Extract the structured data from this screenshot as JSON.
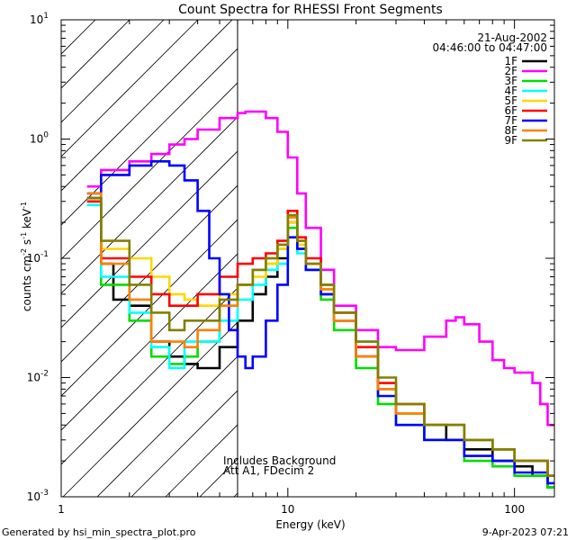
{
  "chart_data": {
    "type": "line",
    "title": "Count Spectra for RHESSI Front Segments",
    "xlabel": "Energy (keV)",
    "ylabel_parts": {
      "counts": "counts cm",
      "exp_minus2": "-2",
      "s": " s",
      "exp_minus1a": "-1",
      "kev": " keV",
      "exp_minus1b": "-1"
    },
    "x_scale": "log",
    "y_scale": "log",
    "xlim": [
      1.0,
      150.0
    ],
    "ylim": [
      0.001,
      10
    ],
    "x_ticks": [
      {
        "value": 1,
        "label": "1"
      },
      {
        "value": 10,
        "label": "10"
      },
      {
        "value": 100,
        "label": "100"
      }
    ],
    "y_ticks": [
      {
        "value": 0.001,
        "base": "10",
        "exp": "-3"
      },
      {
        "value": 0.01,
        "base": "10",
        "exp": "-2"
      },
      {
        "value": 0.1,
        "base": "10",
        "exp": "-1"
      },
      {
        "value": 1,
        "base": "10",
        "exp": "0"
      },
      {
        "value": 10,
        "base": "10",
        "exp": "1"
      }
    ],
    "date": "21-Aug-2002",
    "time_range": "04:46:00 to 04:47:00",
    "hatched_below_kev": 6.0,
    "annotations": [
      "Includes Background",
      "Att A1, FDecim 2"
    ],
    "series": [
      {
        "name": "1F",
        "color": "#000000",
        "points": [
          [
            1.3,
            0.32
          ],
          [
            1.5,
            0.09
          ],
          [
            1.7,
            0.045
          ],
          [
            2.0,
            0.04
          ],
          [
            2.5,
            0.02
          ],
          [
            3.0,
            0.015
          ],
          [
            3.5,
            0.013
          ],
          [
            4.0,
            0.012
          ],
          [
            5.0,
            0.018
          ],
          [
            6.0,
            0.03
          ],
          [
            7.0,
            0.05
          ],
          [
            8.0,
            0.07
          ],
          [
            9.0,
            0.1
          ],
          [
            10.0,
            0.2
          ],
          [
            11.0,
            0.12
          ],
          [
            12.0,
            0.08
          ],
          [
            14.0,
            0.05
          ],
          [
            16.0,
            0.03
          ],
          [
            20.0,
            0.015
          ],
          [
            25.0,
            0.008
          ],
          [
            30.0,
            0.005
          ],
          [
            40.0,
            0.004
          ],
          [
            50.0,
            0.003
          ],
          [
            60.0,
            0.0025
          ],
          [
            80.0,
            0.002
          ],
          [
            100.0,
            0.0018
          ],
          [
            120.0,
            0.0015
          ],
          [
            140.0,
            0.0012
          ]
        ]
      },
      {
        "name": "2F",
        "color": "#ff00ff",
        "points": [
          [
            1.3,
            0.4
          ],
          [
            1.5,
            0.55
          ],
          [
            2.0,
            0.65
          ],
          [
            2.5,
            0.75
          ],
          [
            3.0,
            0.9
          ],
          [
            3.5,
            1.0
          ],
          [
            4.0,
            1.2
          ],
          [
            5.0,
            1.5
          ],
          [
            6.0,
            1.65
          ],
          [
            6.5,
            1.7
          ],
          [
            7.0,
            1.7
          ],
          [
            8.0,
            1.5
          ],
          [
            9.0,
            1.15
          ],
          [
            10.0,
            0.7
          ],
          [
            11.0,
            0.35
          ],
          [
            12.0,
            0.18
          ],
          [
            14.0,
            0.08
          ],
          [
            16.0,
            0.04
          ],
          [
            20.0,
            0.025
          ],
          [
            25.0,
            0.018
          ],
          [
            30.0,
            0.017
          ],
          [
            40.0,
            0.022
          ],
          [
            50.0,
            0.03
          ],
          [
            55.0,
            0.032
          ],
          [
            60.0,
            0.028
          ],
          [
            70.0,
            0.02
          ],
          [
            80.0,
            0.014
          ],
          [
            90.0,
            0.012
          ],
          [
            100.0,
            0.011
          ],
          [
            120.0,
            0.009
          ],
          [
            130.0,
            0.006
          ],
          [
            140.0,
            0.004
          ]
        ]
      },
      {
        "name": "3F",
        "color": "#00dd00",
        "points": [
          [
            1.3,
            0.3
          ],
          [
            1.5,
            0.06
          ],
          [
            2.0,
            0.03
          ],
          [
            2.5,
            0.015
          ],
          [
            3.0,
            0.013
          ],
          [
            3.5,
            0.015
          ],
          [
            4.0,
            0.02
          ],
          [
            5.0,
            0.04
          ],
          [
            6.0,
            0.06
          ],
          [
            7.0,
            0.08
          ],
          [
            8.0,
            0.09
          ],
          [
            9.0,
            0.12
          ],
          [
            10.0,
            0.18
          ],
          [
            11.0,
            0.12
          ],
          [
            12.0,
            0.08
          ],
          [
            14.0,
            0.045
          ],
          [
            16.0,
            0.025
          ],
          [
            20.0,
            0.012
          ],
          [
            25.0,
            0.006
          ],
          [
            30.0,
            0.004
          ],
          [
            40.0,
            0.003
          ],
          [
            60.0,
            0.002
          ],
          [
            80.0,
            0.0018
          ],
          [
            100.0,
            0.0015
          ],
          [
            140.0,
            0.0012
          ]
        ]
      },
      {
        "name": "4F",
        "color": "#00ffff",
        "points": [
          [
            1.3,
            0.28
          ],
          [
            1.5,
            0.07
          ],
          [
            2.0,
            0.035
          ],
          [
            2.5,
            0.018
          ],
          [
            3.0,
            0.012
          ],
          [
            3.5,
            0.02
          ],
          [
            4.0,
            0.02
          ],
          [
            5.0,
            0.03
          ],
          [
            6.0,
            0.045
          ],
          [
            7.0,
            0.06
          ],
          [
            8.0,
            0.08
          ],
          [
            9.0,
            0.09
          ],
          [
            10.0,
            0.15
          ],
          [
            11.0,
            0.11
          ],
          [
            12.0,
            0.08
          ],
          [
            14.0,
            0.05
          ],
          [
            16.0,
            0.03
          ],
          [
            20.0,
            0.02
          ],
          [
            25.0,
            0.008
          ],
          [
            30.0,
            0.005
          ],
          [
            40.0,
            0.004
          ],
          [
            60.0,
            0.003
          ],
          [
            80.0,
            0.0025
          ],
          [
            100.0,
            0.002
          ],
          [
            140.0,
            0.0015
          ]
        ]
      },
      {
        "name": "5F",
        "color": "#ffd700",
        "points": [
          [
            1.3,
            0.3
          ],
          [
            1.5,
            0.12
          ],
          [
            2.0,
            0.1
          ],
          [
            2.5,
            0.07
          ],
          [
            3.0,
            0.05
          ],
          [
            3.5,
            0.045
          ],
          [
            4.0,
            0.04
          ],
          [
            5.0,
            0.05
          ],
          [
            6.0,
            0.06
          ],
          [
            7.0,
            0.07
          ],
          [
            8.0,
            0.09
          ],
          [
            9.0,
            0.12
          ],
          [
            10.0,
            0.2
          ],
          [
            11.0,
            0.13
          ],
          [
            12.0,
            0.09
          ],
          [
            14.0,
            0.055
          ],
          [
            16.0,
            0.03
          ],
          [
            20.0,
            0.015
          ],
          [
            25.0,
            0.008
          ],
          [
            30.0,
            0.005
          ],
          [
            40.0,
            0.004
          ],
          [
            60.0,
            0.003
          ],
          [
            80.0,
            0.0025
          ],
          [
            100.0,
            0.002
          ],
          [
            140.0,
            0.0015
          ]
        ]
      },
      {
        "name": "6F",
        "color": "#ff0000",
        "points": [
          [
            1.3,
            0.3
          ],
          [
            1.5,
            0.1
          ],
          [
            2.0,
            0.07
          ],
          [
            2.5,
            0.05
          ],
          [
            3.0,
            0.04
          ],
          [
            3.5,
            0.04
          ],
          [
            4.0,
            0.05
          ],
          [
            5.0,
            0.07
          ],
          [
            6.0,
            0.09
          ],
          [
            7.0,
            0.1
          ],
          [
            8.0,
            0.11
          ],
          [
            9.0,
            0.14
          ],
          [
            10.0,
            0.25
          ],
          [
            11.0,
            0.15
          ],
          [
            12.0,
            0.1
          ],
          [
            14.0,
            0.06
          ],
          [
            16.0,
            0.035
          ],
          [
            20.0,
            0.018
          ],
          [
            25.0,
            0.009
          ],
          [
            30.0,
            0.006
          ],
          [
            40.0,
            0.004
          ],
          [
            60.0,
            0.003
          ],
          [
            80.0,
            0.0025
          ],
          [
            100.0,
            0.002
          ],
          [
            140.0,
            0.0015
          ]
        ]
      },
      {
        "name": "7F",
        "color": "#0000ff",
        "points": [
          [
            1.3,
            0.35
          ],
          [
            1.5,
            0.5
          ],
          [
            2.0,
            0.6
          ],
          [
            2.5,
            0.65
          ],
          [
            3.0,
            0.6
          ],
          [
            3.5,
            0.45
          ],
          [
            4.0,
            0.25
          ],
          [
            4.5,
            0.1
          ],
          [
            5.0,
            0.05
          ],
          [
            5.5,
            0.025
          ],
          [
            6.0,
            0.015
          ],
          [
            6.5,
            0.012
          ],
          [
            7.0,
            0.015
          ],
          [
            8.0,
            0.03
          ],
          [
            9.0,
            0.06
          ],
          [
            10.0,
            0.15
          ],
          [
            11.0,
            0.12
          ],
          [
            12.0,
            0.08
          ],
          [
            14.0,
            0.05
          ],
          [
            16.0,
            0.03
          ],
          [
            20.0,
            0.015
          ],
          [
            25.0,
            0.007
          ],
          [
            30.0,
            0.004
          ],
          [
            40.0,
            0.003
          ],
          [
            60.0,
            0.0022
          ],
          [
            80.0,
            0.002
          ],
          [
            100.0,
            0.0016
          ],
          [
            140.0,
            0.0013
          ]
        ]
      },
      {
        "name": "8F",
        "color": "#ff8000",
        "points": [
          [
            1.3,
            0.35
          ],
          [
            1.5,
            0.09
          ],
          [
            2.0,
            0.045
          ],
          [
            2.5,
            0.02
          ],
          [
            3.0,
            0.02
          ],
          [
            3.5,
            0.018
          ],
          [
            4.0,
            0.025
          ],
          [
            5.0,
            0.04
          ],
          [
            6.0,
            0.06
          ],
          [
            7.0,
            0.08
          ],
          [
            8.0,
            0.1
          ],
          [
            9.0,
            0.13
          ],
          [
            10.0,
            0.22
          ],
          [
            11.0,
            0.14
          ],
          [
            12.0,
            0.09
          ],
          [
            14.0,
            0.055
          ],
          [
            16.0,
            0.03
          ],
          [
            20.0,
            0.015
          ],
          [
            25.0,
            0.008
          ],
          [
            30.0,
            0.005
          ],
          [
            40.0,
            0.004
          ],
          [
            60.0,
            0.003
          ],
          [
            80.0,
            0.0025
          ],
          [
            100.0,
            0.002
          ],
          [
            140.0,
            0.0015
          ]
        ]
      },
      {
        "name": "9F",
        "color": "#808000",
        "points": [
          [
            1.3,
            0.32
          ],
          [
            1.5,
            0.14
          ],
          [
            2.0,
            0.06
          ],
          [
            2.5,
            0.035
          ],
          [
            3.0,
            0.025
          ],
          [
            3.5,
            0.03
          ],
          [
            4.0,
            0.03
          ],
          [
            5.0,
            0.045
          ],
          [
            6.0,
            0.06
          ],
          [
            7.0,
            0.08
          ],
          [
            8.0,
            0.1
          ],
          [
            9.0,
            0.13
          ],
          [
            10.0,
            0.23
          ],
          [
            11.0,
            0.14
          ],
          [
            12.0,
            0.09
          ],
          [
            14.0,
            0.06
          ],
          [
            16.0,
            0.035
          ],
          [
            20.0,
            0.02
          ],
          [
            25.0,
            0.01
          ],
          [
            30.0,
            0.006
          ],
          [
            40.0,
            0.004
          ],
          [
            60.0,
            0.003
          ],
          [
            80.0,
            0.0025
          ],
          [
            100.0,
            0.002
          ],
          [
            140.0,
            0.0015
          ]
        ]
      }
    ]
  },
  "footer": {
    "generated_by": "Generated by hsi_min_spectra_plot.pro",
    "timestamp": "9-Apr-2023 07:21"
  }
}
